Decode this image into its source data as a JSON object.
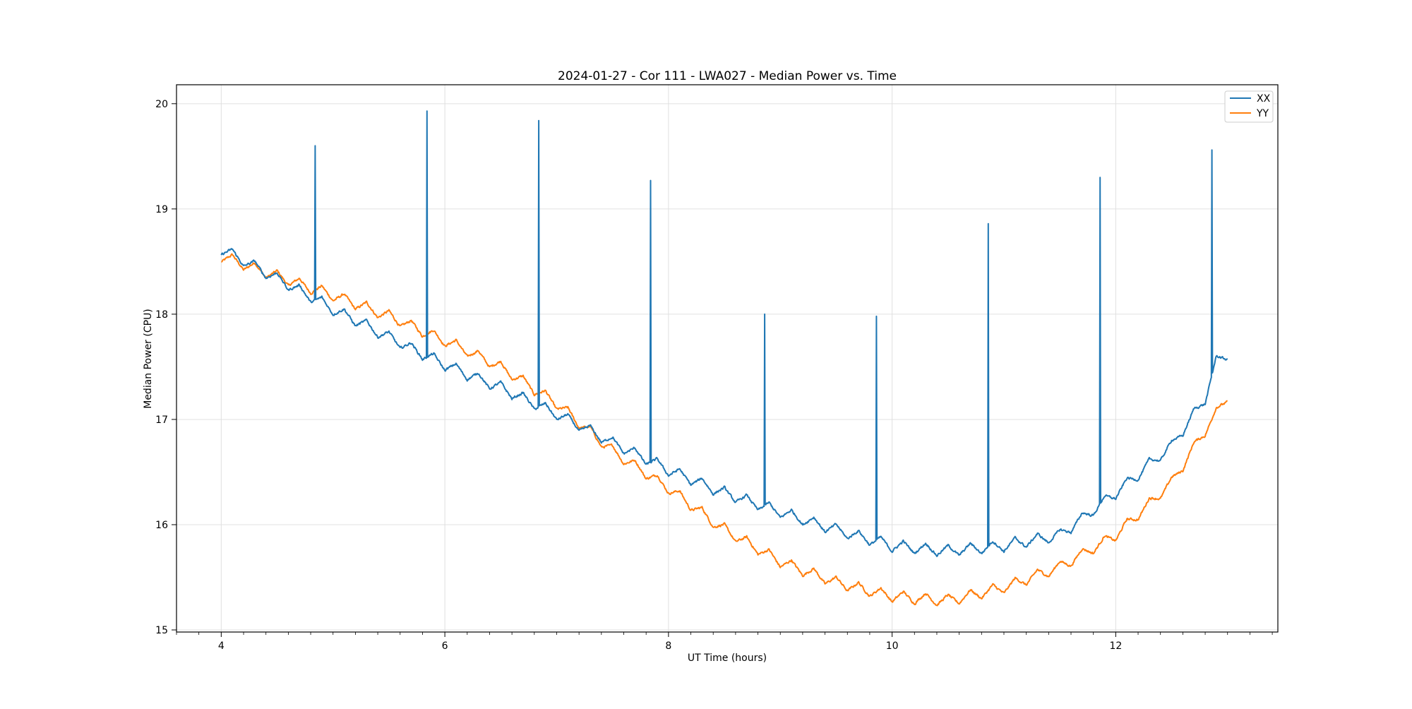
{
  "chart_data": {
    "type": "line",
    "title": "2024-01-27 - Cor 111 - LWA027 - Median Power vs. Time",
    "xlabel": "UT Time (hours)",
    "ylabel": "Median Power (CPU)",
    "xlim": [
      3.6,
      13.45
    ],
    "ylim": [
      14.98,
      20.18
    ],
    "xticks": [
      4,
      6,
      8,
      10,
      12
    ],
    "xtick_labels": [
      "4",
      "6",
      "8",
      "10",
      "12"
    ],
    "xminor_step": 0.2,
    "yticks": [
      15,
      16,
      17,
      18,
      19,
      20
    ],
    "ytick_labels": [
      "15",
      "16",
      "17",
      "18",
      "19",
      "20"
    ],
    "grid": true,
    "legend_position": "top-right",
    "series": [
      {
        "name": "XX",
        "color": "#1f77b4",
        "baseline": [
          [
            4.0,
            18.62
          ],
          [
            4.5,
            18.34
          ],
          [
            5.0,
            18.05
          ],
          [
            5.5,
            17.78
          ],
          [
            6.0,
            17.52
          ],
          [
            6.5,
            17.3
          ],
          [
            7.0,
            17.05
          ],
          [
            7.5,
            16.78
          ],
          [
            8.0,
            16.52
          ],
          [
            8.5,
            16.3
          ],
          [
            9.0,
            16.12
          ],
          [
            9.5,
            15.95
          ],
          [
            10.0,
            15.8
          ],
          [
            10.5,
            15.75
          ],
          [
            11.0,
            15.8
          ],
          [
            11.5,
            15.9
          ],
          [
            12.0,
            16.3
          ],
          [
            12.5,
            16.75
          ],
          [
            12.8,
            17.2
          ],
          [
            12.9,
            17.55
          ],
          [
            13.0,
            17.62
          ]
        ],
        "ripple_period": 0.2,
        "ripple_amplitude": 0.06,
        "noise": 0.015,
        "spikes": [
          [
            4.84,
            19.6
          ],
          [
            5.84,
            19.93
          ],
          [
            6.84,
            19.84
          ],
          [
            7.84,
            19.27
          ],
          [
            8.86,
            18.0
          ],
          [
            9.86,
            17.98
          ],
          [
            10.86,
            18.86
          ],
          [
            11.86,
            19.3
          ],
          [
            12.86,
            19.56
          ]
        ]
      },
      {
        "name": "YY",
        "color": "#ff7f0e",
        "baseline": [
          [
            4.0,
            18.55
          ],
          [
            4.5,
            18.36
          ],
          [
            5.0,
            18.18
          ],
          [
            5.5,
            17.98
          ],
          [
            6.0,
            17.75
          ],
          [
            6.5,
            17.5
          ],
          [
            7.0,
            17.15
          ],
          [
            7.5,
            16.7
          ],
          [
            8.0,
            16.35
          ],
          [
            8.5,
            15.95
          ],
          [
            9.0,
            15.65
          ],
          [
            9.5,
            15.45
          ],
          [
            10.0,
            15.32
          ],
          [
            10.5,
            15.28
          ],
          [
            11.0,
            15.4
          ],
          [
            11.5,
            15.6
          ],
          [
            12.0,
            15.9
          ],
          [
            12.5,
            16.4
          ],
          [
            12.8,
            16.9
          ],
          [
            13.0,
            17.22
          ]
        ],
        "ripple_period": 0.2,
        "ripple_amplitude": 0.06,
        "noise": 0.015,
        "spikes": []
      }
    ]
  }
}
